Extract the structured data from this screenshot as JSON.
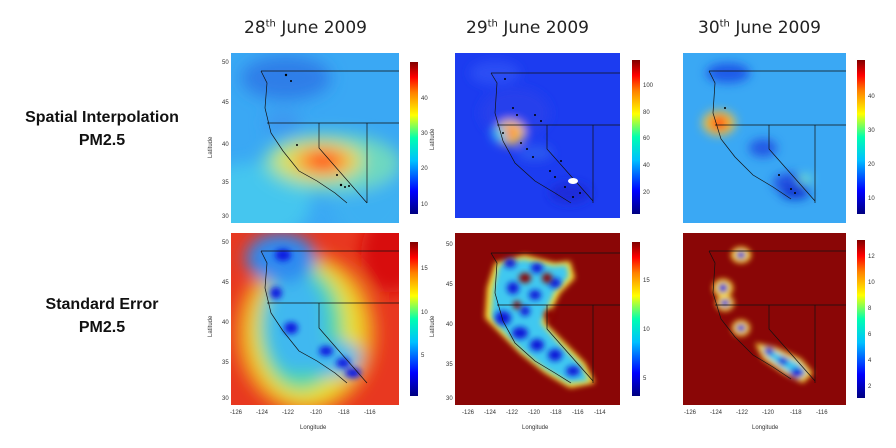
{
  "columns": [
    {
      "day": "28",
      "sup": "th",
      "rest": "June 2009"
    },
    {
      "day": "29",
      "sup": "th",
      "rest": "June 2009"
    },
    {
      "day": "30",
      "sup": "th",
      "rest": "June 2009"
    }
  ],
  "rows": [
    {
      "line1": "Spatial Interpolation",
      "line2": "PM2.5"
    },
    {
      "line1": "Standard Error",
      "line2": "PM2.5"
    }
  ],
  "axes": {
    "ylabel": "Latitude",
    "xlabel": "Longitude",
    "lat_ticks": [
      "30",
      "35",
      "40",
      "45",
      "50"
    ]
  },
  "xticks": {
    "a": [
      "-126",
      "-124",
      "-122",
      "-120",
      "-118",
      "-116"
    ],
    "b": [
      "-126",
      "-124",
      "-122",
      "-120",
      "-118",
      "-116",
      "-114"
    ]
  },
  "colorbars": {
    "p1": [
      "10",
      "20",
      "30",
      "40"
    ],
    "p2": [
      "20",
      "40",
      "60",
      "80",
      "100"
    ],
    "p3": [
      "10",
      "20",
      "30",
      "40"
    ],
    "p4": [
      "5",
      "10",
      "15"
    ],
    "p5": [
      "5",
      "10",
      "15"
    ],
    "p6": [
      "2",
      "4",
      "6",
      "8",
      "10",
      "12"
    ]
  },
  "colors": {
    "ramp": [
      "#000080",
      "#0000ff",
      "#00c0ff",
      "#00ffb0",
      "#ffff00",
      "#ff8000",
      "#ff0000",
      "#800000"
    ]
  }
}
